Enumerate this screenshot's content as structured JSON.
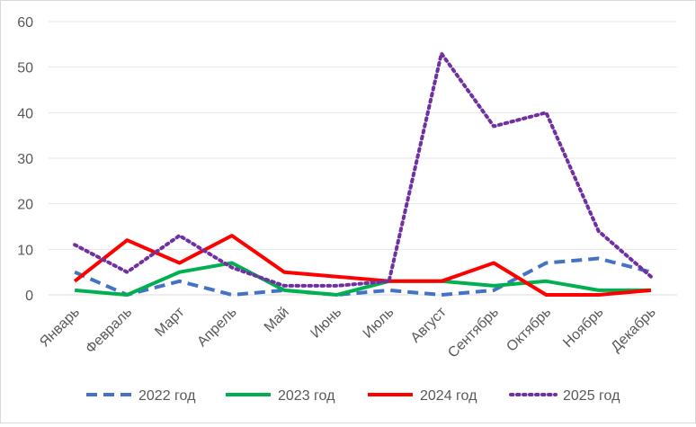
{
  "chart_data": {
    "type": "line",
    "categories": [
      "Январь",
      "Февраль",
      "Март",
      "Апрель",
      "Май",
      "Июнь",
      "Июль",
      "Август",
      "Сентябрь",
      "Октябрь",
      "Ноябрь",
      "Декабрь"
    ],
    "ylim": [
      0,
      60
    ],
    "yticks": [
      "0",
      "10",
      "20",
      "30",
      "40",
      "50",
      "60"
    ],
    "grid": true,
    "legend_position": "bottom",
    "series": [
      {
        "name": "2022 год",
        "color": "#4472c4",
        "style": "dashed",
        "values": [
          5,
          0,
          3,
          0,
          1,
          0,
          1,
          0,
          1,
          7,
          8,
          5
        ]
      },
      {
        "name": "2023 год",
        "color": "#00b050",
        "style": "solid",
        "values": [
          1,
          0,
          5,
          7,
          1,
          0,
          3,
          3,
          2,
          3,
          1,
          1
        ]
      },
      {
        "name": "2024 год",
        "color": "#ff0000",
        "style": "solid",
        "values": [
          3,
          12,
          7,
          13,
          5,
          4,
          3,
          3,
          7,
          0,
          0,
          1
        ]
      },
      {
        "name": "2025 год",
        "color": "#7030a0",
        "style": "dotted",
        "values": [
          11,
          5,
          13,
          6,
          2,
          2,
          3,
          53,
          37,
          40,
          14,
          4
        ]
      }
    ]
  }
}
